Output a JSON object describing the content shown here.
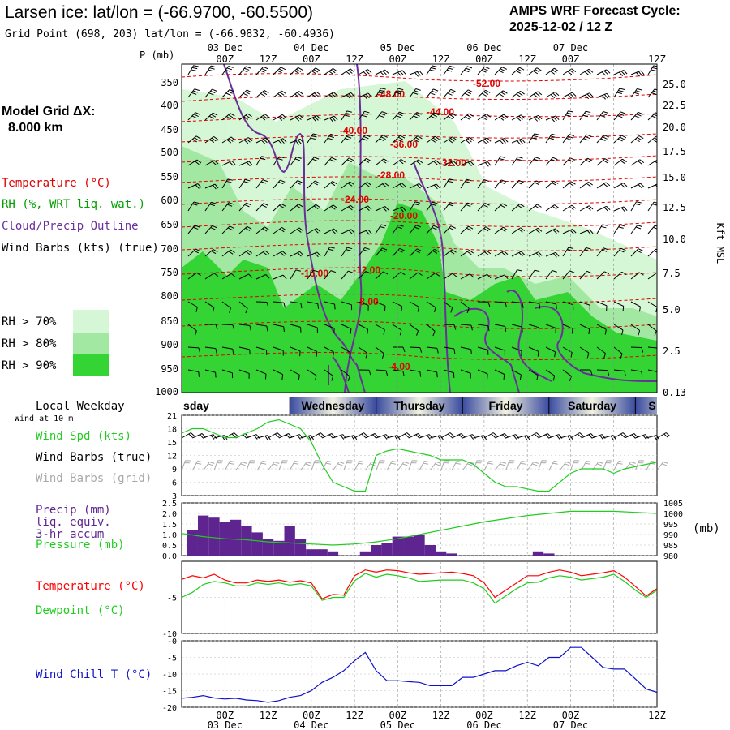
{
  "header": {
    "title": "Larsen ice:  lat/lon = (-66.9700, -60.5500)",
    "subtitle": "Grid Point (698, 203) lat/lon = (-66.9832, -60.4936)",
    "cycle_line1": "AMPS WRF Forecast Cycle:",
    "cycle_line2": "2025-12-02 / 12  Z"
  },
  "model_grid": {
    "label": "Model Grid ΔX:",
    "value": "8.000 km"
  },
  "legend": {
    "temperature": "Temperature (°C)",
    "rh": "RH (%, WRT liq. wat.)",
    "cloud": "Cloud/Precip Outline",
    "wind": "Wind Barbs (kts) (true)",
    "rh70": "RH > 70%",
    "rh80": "RH > 80%",
    "rh90": "RH > 90%"
  },
  "colors": {
    "temperature": "#e00000",
    "rh": "#00a000",
    "cloud": "#6a2f9a",
    "rh70": "#d5f7d5",
    "rh80": "#a2e8a2",
    "rh90": "#35d435",
    "wind_grid": "#a8a8a8",
    "windspd": "#1fcc1f",
    "precip": "#5e2490",
    "pressure": "#1fcc1f",
    "temp_line": "#ff0000",
    "dew_line": "#1fcc1f",
    "chill": "#1010c8"
  },
  "time_axis": {
    "hour_labels": [
      "00Z",
      "12Z",
      "00Z",
      "12Z",
      "00Z",
      "12Z",
      "00Z",
      "12Z",
      "00Z",
      "12Z"
    ],
    "date_labels": [
      "03 Dec",
      "04 Dec",
      "05 Dec",
      "06 Dec",
      "07 Dec"
    ]
  },
  "pressure_axis": {
    "label": "P (mb)",
    "ticks": [
      "350",
      "400",
      "450",
      "500",
      "550",
      "600",
      "650",
      "700",
      "750",
      "800",
      "850",
      "900",
      "950",
      "1000"
    ]
  },
  "height_axis": {
    "label": "Kft MSL",
    "ticks": [
      "25.0",
      "22.5",
      "20.0",
      "17.5",
      "15.0",
      "12.5",
      "10.0",
      "7.5",
      "5.0",
      "2.5",
      "0.13"
    ]
  },
  "temp_contour_labels": [
    "-52.00",
    "-48.00",
    "-44.00",
    "-40.00",
    "-36.00",
    "-32.00",
    "-28.00",
    "-24.00",
    "-20.00",
    "-16.00",
    "-12.00",
    "-8.00",
    "-4.00"
  ],
  "weekday_bar": {
    "label": "Local Weekday",
    "days": [
      "Tuesday",
      "Wednesday",
      "Thursday",
      "Friday",
      "Saturday",
      "Sunday"
    ],
    "visible": [
      "sday",
      "Wednesday",
      "Thursday",
      "Friday",
      "Saturday",
      "S"
    ]
  },
  "wind_panel": {
    "caption": "Wind at 10 m",
    "spd_label": "Wind Spd (kts)",
    "barb_true_label": "Wind Barbs (true)",
    "barb_grid_label": "Wind Barbs (grid)",
    "yticks": [
      "21",
      "18",
      "15",
      "12",
      "9",
      "6",
      "3"
    ]
  },
  "precip_panel": {
    "label1": "Precip (mm)",
    "label2": "liq. equiv.",
    "label3": "3-hr accum",
    "pressure_label": "Pressure (mb)",
    "left_ticks": [
      "2.5",
      "2.0",
      "1.5",
      "1.0",
      "0.5",
      "0.0"
    ],
    "right_ticks": [
      "1005",
      "1000",
      "995",
      "990",
      "985",
      "980"
    ],
    "unit": "(mb)"
  },
  "temp_panel": {
    "temp_label": "Temperature (°C)",
    "dew_label": "Dewpoint (°C)",
    "yticks": [
      "-5",
      "-10"
    ]
  },
  "chill_panel": {
    "label": "Wind Chill T (°C)",
    "yticks": [
      "-0",
      "-5",
      "-10",
      "-15",
      "-20"
    ]
  },
  "chart_data": [
    {
      "type": "line",
      "title": "Wind Spd (kts)",
      "x_hours": [
        -12,
        -9,
        -6,
        -3,
        0,
        3,
        6,
        9,
        12,
        15,
        18,
        21,
        24,
        27,
        30,
        33,
        36,
        39,
        42,
        45,
        48,
        51,
        54,
        57,
        60,
        63,
        66,
        69,
        72,
        75,
        78,
        81,
        84,
        87,
        90,
        93,
        96,
        99,
        102,
        105,
        108,
        111,
        114,
        117,
        120
      ],
      "values": [
        17,
        18,
        18,
        17,
        16,
        16,
        17,
        18,
        19.5,
        20,
        19,
        18,
        15,
        10,
        6,
        5,
        4,
        4,
        12,
        13,
        13.5,
        13,
        12.5,
        12,
        11,
        11,
        11,
        10,
        8,
        6,
        5,
        5,
        4.5,
        4,
        4,
        6,
        8,
        9,
        9,
        9,
        8,
        9,
        9.5,
        10,
        10.5
      ],
      "ylim": [
        3,
        21
      ]
    },
    {
      "type": "bar",
      "title": "Precip (mm) liq. equiv. 3-hr accum",
      "x_hours": [
        -9,
        -6,
        -3,
        0,
        3,
        6,
        9,
        12,
        15,
        18,
        21,
        24,
        27,
        30,
        33,
        36,
        39,
        42,
        45,
        48,
        51,
        54,
        57,
        60,
        63,
        66,
        69,
        72,
        75,
        78,
        81,
        84,
        87,
        90,
        93,
        96
      ],
      "values": [
        1.2,
        1.9,
        1.8,
        1.6,
        1.7,
        1.4,
        1.1,
        0.8,
        0.7,
        1.4,
        0.8,
        0.3,
        0.3,
        0.2,
        0.0,
        0.0,
        0.2,
        0.5,
        0.6,
        0.9,
        0.9,
        1.0,
        0.5,
        0.2,
        0.1,
        0.0,
        0.0,
        0.0,
        0.0,
        0.0,
        0.0,
        0.0,
        0.2,
        0.1,
        0.0,
        0.0
      ],
      "ylim": [
        0,
        2.5
      ]
    },
    {
      "type": "line",
      "title": "Pressure (mb)",
      "x_hours": [
        -12,
        -6,
        0,
        6,
        12,
        18,
        24,
        30,
        36,
        42,
        48,
        54,
        60,
        66,
        72,
        78,
        84,
        90,
        96,
        102,
        108,
        114,
        120
      ],
      "values": [
        990.5,
        989,
        988,
        987.5,
        986.5,
        986,
        985.5,
        985,
        985.5,
        986.5,
        988,
        990,
        992,
        994,
        996,
        997.5,
        999,
        1000,
        1001,
        1001,
        1001,
        1000.5,
        1000
      ],
      "ylim": [
        980,
        1005
      ]
    },
    {
      "type": "line",
      "title": "Temperature / Dewpoint (°C)",
      "x_hours": [
        -12,
        -9,
        -6,
        -3,
        0,
        3,
        6,
        9,
        12,
        15,
        18,
        21,
        24,
        27,
        30,
        33,
        36,
        39,
        42,
        45,
        48,
        51,
        54,
        57,
        60,
        63,
        66,
        69,
        72,
        75,
        78,
        81,
        84,
        87,
        90,
        93,
        96,
        99,
        102,
        105,
        108,
        111,
        114,
        117,
        120
      ],
      "series": [
        {
          "name": "Temperature",
          "values": [
            -2.5,
            -2.0,
            -2.3,
            -1.8,
            -2.6,
            -3.0,
            -3.0,
            -2.6,
            -2.8,
            -2.6,
            -2.9,
            -2.7,
            -3.0,
            -5.2,
            -4.6,
            -4.7,
            -2.0,
            -1.2,
            -1.5,
            -1.2,
            -1.3,
            -1.6,
            -1.8,
            -1.7,
            -1.6,
            -1.5,
            -1.7,
            -2.0,
            -3.0,
            -5.0,
            -4.0,
            -3.0,
            -2.0,
            -2.0,
            -1.5,
            -1.2,
            -1.5,
            -2.0,
            -1.8,
            -1.6,
            -1.3,
            -2.2,
            -3.5,
            -4.8,
            -3.8
          ]
        },
        {
          "name": "Dewpoint",
          "values": [
            -5.0,
            -4.3,
            -3.2,
            -2.8,
            -3.0,
            -3.4,
            -3.4,
            -3.0,
            -3.2,
            -3.0,
            -3.3,
            -3.1,
            -3.4,
            -5.4,
            -5.0,
            -5.0,
            -2.7,
            -1.7,
            -2.2,
            -1.8,
            -2.0,
            -2.3,
            -2.8,
            -2.7,
            -2.6,
            -2.6,
            -2.6,
            -3.0,
            -3.8,
            -5.8,
            -4.8,
            -3.8,
            -3.0,
            -2.9,
            -2.3,
            -2.0,
            -2.2,
            -2.6,
            -2.4,
            -2.2,
            -1.8,
            -2.8,
            -4.0,
            -5.0,
            -4.0
          ]
        }
      ],
      "ylim": [
        -10,
        0
      ]
    },
    {
      "type": "line",
      "title": "Wind Chill T (°C)",
      "x_hours": [
        -12,
        -9,
        -6,
        -3,
        0,
        3,
        6,
        9,
        12,
        15,
        18,
        21,
        24,
        27,
        30,
        33,
        36,
        39,
        42,
        45,
        48,
        51,
        54,
        57,
        60,
        63,
        66,
        69,
        72,
        75,
        78,
        81,
        84,
        87,
        90,
        93,
        96,
        99,
        102,
        105,
        108,
        111,
        114,
        117,
        120
      ],
      "values": [
        -17.3,
        -17.0,
        -16.5,
        -17.2,
        -17.5,
        -17.3,
        -17.8,
        -18.0,
        -18.5,
        -18.0,
        -17.0,
        -16.5,
        -15.0,
        -12.5,
        -11.0,
        -9.0,
        -6.0,
        -3.5,
        -9.0,
        -12.0,
        -12.0,
        -12.3,
        -12.5,
        -13.5,
        -13.5,
        -13.5,
        -11.0,
        -11.0,
        -10.0,
        -9.0,
        -9.0,
        -7.5,
        -6.5,
        -7.5,
        -5.0,
        -5.0,
        -2.0,
        -2.0,
        -5.0,
        -8.0,
        -8.5,
        -8.5,
        -11.5,
        -14.5,
        -15.5
      ],
      "ylim": [
        -20,
        0
      ]
    }
  ]
}
